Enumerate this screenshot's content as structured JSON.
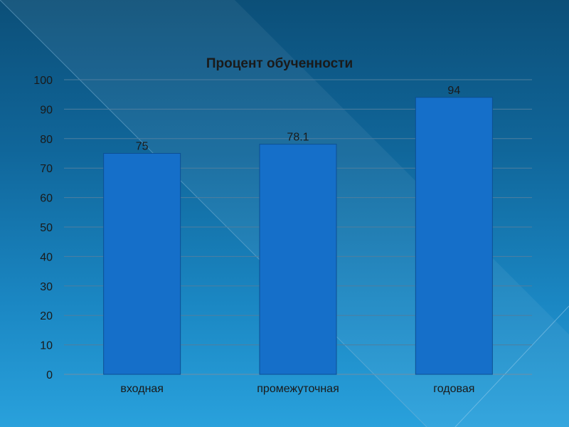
{
  "chart_data": {
    "type": "bar",
    "title": "Процент обученности",
    "categories": [
      "входная",
      "промежуточная",
      "годовая"
    ],
    "values": [
      75,
      78.1,
      94
    ],
    "value_labels": [
      "75",
      "78.1",
      "94"
    ],
    "ylim": [
      0,
      100
    ],
    "yticks": [
      0,
      10,
      20,
      30,
      40,
      50,
      60,
      70,
      80,
      90,
      100
    ],
    "grid": true,
    "legend": "none",
    "bar_color": "#156fc9",
    "bar_border": "#0d4f92"
  }
}
